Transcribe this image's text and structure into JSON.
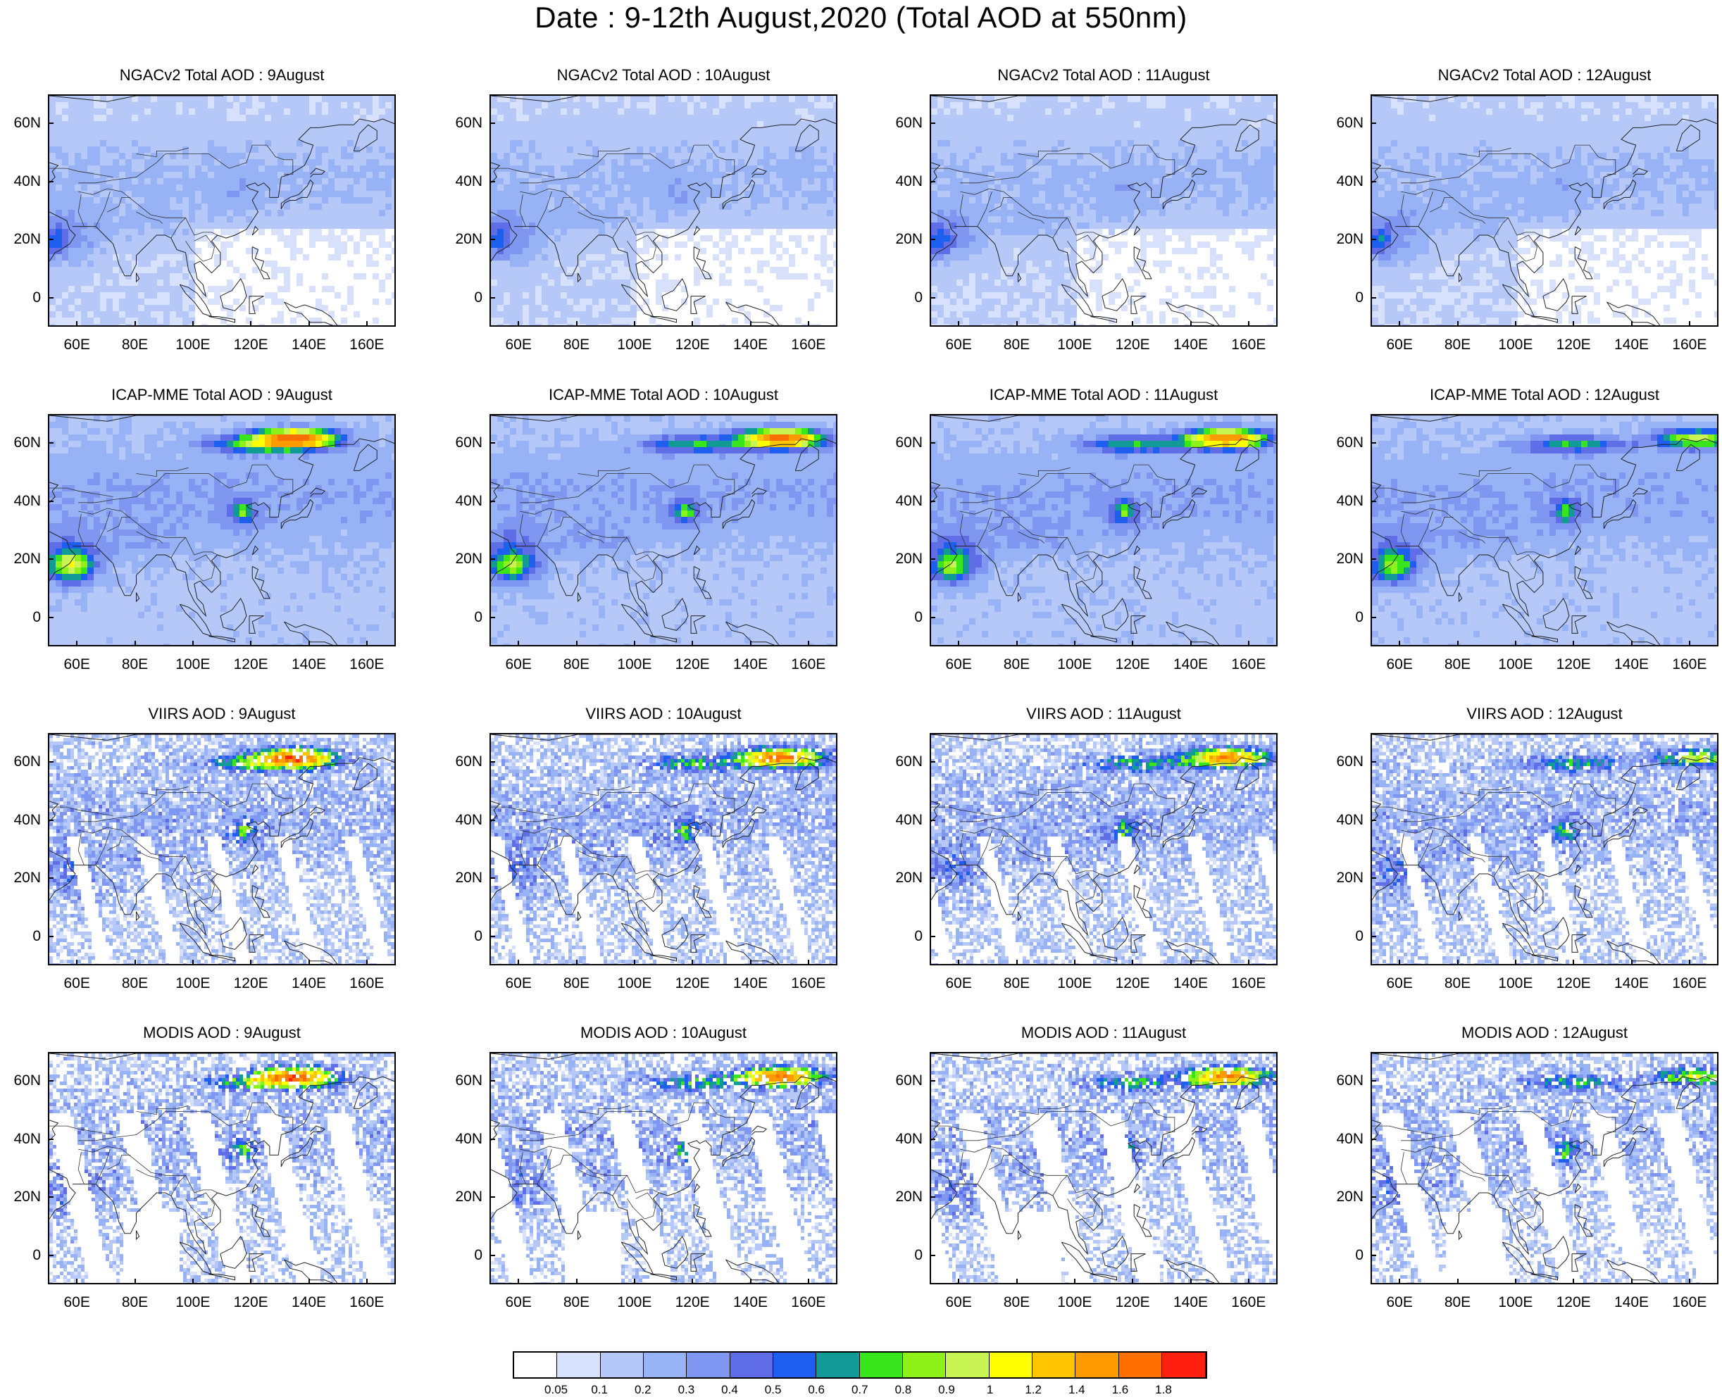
{
  "title": "Date : 9-12th August,2020 (Total AOD at 550nm)",
  "lat_labels": [
    "60N",
    "40N",
    "20N",
    "0"
  ],
  "lon_labels": [
    "60E",
    "80E",
    "100E",
    "120E",
    "140E",
    "160E"
  ],
  "map_extent": {
    "lon_min": 50,
    "lon_max": 170,
    "lat_min": -10,
    "lat_max": 70
  },
  "panels": [
    [
      {
        "title": "NGACv2 Total AOD : 9August",
        "plumes": []
      },
      {
        "title": "NGACv2 Total AOD : 10August",
        "plumes": []
      },
      {
        "title": "NGACv2 Total AOD : 11August",
        "plumes": []
      },
      {
        "title": "NGACv2 Total AOD : 12August",
        "plumes": []
      }
    ],
    [
      {
        "title": "ICAP-MME Total AOD : 9August",
        "plumes": []
      },
      {
        "title": "ICAP-MME Total AOD : 10August",
        "plumes": []
      },
      {
        "title": "ICAP-MME Total AOD : 11August",
        "plumes": []
      },
      {
        "title": "ICAP-MME Total AOD : 12August",
        "plumes": []
      }
    ],
    [
      {
        "title": "VIIRS AOD : 9August",
        "plumes": []
      },
      {
        "title": "VIIRS AOD : 10August",
        "plumes": []
      },
      {
        "title": "VIIRS AOD : 11August",
        "plumes": []
      },
      {
        "title": "VIIRS AOD : 12August",
        "plumes": []
      }
    ],
    [
      {
        "title": "MODIS AOD : 9August",
        "plumes": []
      },
      {
        "title": "MODIS AOD : 10August",
        "plumes": []
      },
      {
        "title": "MODIS AOD : 11August",
        "plumes": []
      },
      {
        "title": "MODIS AOD : 12August",
        "plumes": []
      }
    ]
  ],
  "colorbar": {
    "labels": [
      "0.05",
      "0.1",
      "0.2",
      "0.3",
      "0.4",
      "0.5",
      "0.6",
      "0.7",
      "0.8",
      "0.9",
      "1",
      "1.2",
      "1.4",
      "1.6",
      "1.8"
    ],
    "colors": [
      "#ffffff",
      "#d7e1fc",
      "#b6c8f8",
      "#98b2f6",
      "#7f97f0",
      "#5f6ee6",
      "#1f5ff0",
      "#119a96",
      "#39e61e",
      "#8ef21a",
      "#c8f554",
      "#ffff00",
      "#ffc400",
      "#ff9a00",
      "#ff7000",
      "#ff2010"
    ]
  }
}
